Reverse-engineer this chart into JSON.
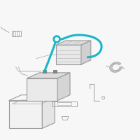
{
  "bg_color": "#ffffff",
  "line_color": "#aaaaaa",
  "line_color2": "#888888",
  "highlight_color": "#1ab5c8",
  "dark_color": "#555555",
  "fig_bg": "#f7f7f7",
  "border_color": "#dddddd"
}
